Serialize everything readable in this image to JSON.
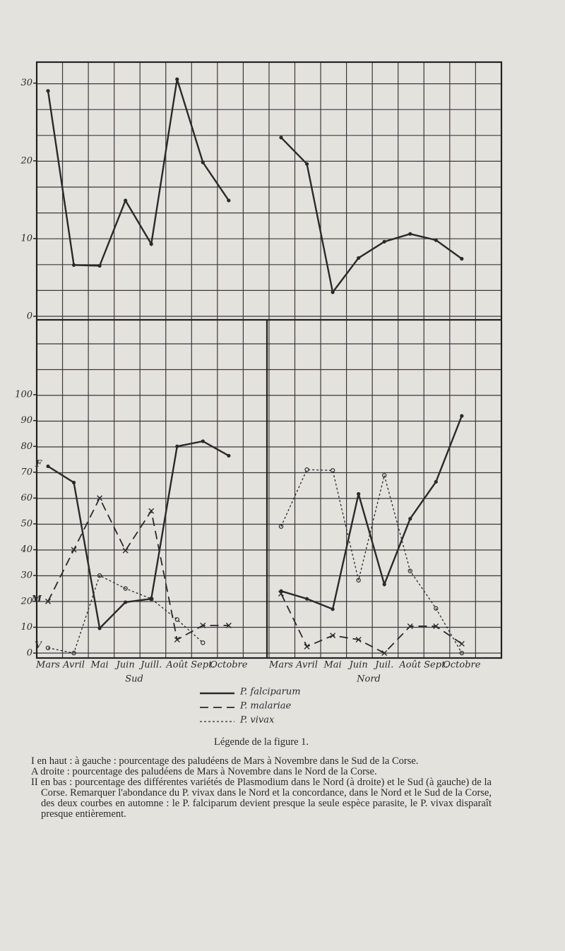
{
  "chart_data": {
    "type": "line",
    "top": {
      "ylim": [
        0,
        32.7
      ],
      "yticks": [
        0,
        10,
        20,
        30
      ]
    },
    "bottom": {
      "ylim": [
        0,
        129
      ],
      "yticks": [
        0,
        10,
        20,
        30,
        40,
        50,
        60,
        70,
        80,
        90,
        100
      ]
    },
    "legend": [
      {
        "name": "P. falciparum",
        "dash": "solid",
        "marker": "dot"
      },
      {
        "name": "P. malariae",
        "dash": "long",
        "marker": "cross"
      },
      {
        "name": "P. vivax",
        "dash": "short",
        "marker": "ring"
      }
    ],
    "color": "#2a2a2a",
    "panels": [
      {
        "xlabel": "Sud",
        "categories": [
          "Mars",
          "Avril",
          "Mai",
          "Juin",
          "Juill.",
          "Août",
          "Sept.",
          "Octobre"
        ],
        "top_values": [
          29,
          6.6,
          6.5,
          14.9,
          9.3,
          30.5,
          19.8,
          14.9
        ],
        "series": [
          {
            "label": "F",
            "values": [
              72.3,
              66,
              9.6,
              19.7,
              21,
              80,
              82,
              76.4
            ]
          },
          {
            "label": "M",
            "values": [
              20,
              40,
              60,
              39.7,
              55,
              5.2,
              10.7,
              10.7
            ]
          },
          {
            "label": "V",
            "values": [
              2,
              0,
              30,
              25,
              21,
              13,
              4,
              null
            ]
          }
        ]
      },
      {
        "xlabel": "Nord",
        "categories": [
          "Mars",
          "Avril",
          "Mai",
          "Juin",
          "Juil.",
          "Août",
          "Sept.",
          "Octobre"
        ],
        "top_values": [
          23,
          19.6,
          3.1,
          7.5,
          9.6,
          10.6,
          9.8,
          7.4
        ],
        "series": [
          {
            "values": [
              24,
              21,
              17,
              61.6,
              26.6,
              52,
              66.3,
              91.8
            ]
          },
          {
            "values": [
              23,
              2.5,
              6.8,
              5.2,
              0,
              10.4,
              10.4,
              3.6
            ]
          },
          {
            "values": [
              49,
              71,
              70.7,
              28.2,
              68.8,
              31.8,
              17.3,
              0
            ]
          }
        ]
      }
    ]
  },
  "caption": {
    "title": "Légende de la figure 1.",
    "lines": [
      "I en haut : à gauche : pourcentage des paludéens de Mars à Novembre dans le Sud de la Corse.",
      "A droite : pourcentage des paludéens de Mars à Novembre dans le Nord de la Corse.",
      "II en bas : pourcentage des différentes variétés de Plasmodium dans le Nord (à droite) et le Sud (à gauche) de la Corse. Remarquer l'abondance du P. vivax dans le Nord et la concordance, dans le Nord et le Sud de la Corse, des deux courbes en automne : le P. falciparum devient presque la seule espèce parasite, le P. vivax disparaît presque entièrement."
    ]
  }
}
